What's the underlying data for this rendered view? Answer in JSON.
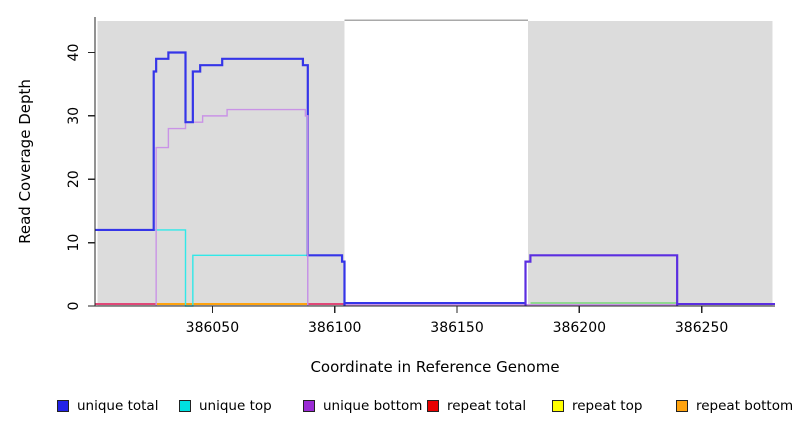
{
  "axes": {
    "x_label": "Coordinate in Reference Genome",
    "y_label": "Read Coverage Depth"
  },
  "legend": {
    "items": [
      {
        "label": "unique total",
        "color": "#2222E6"
      },
      {
        "label": "unique top",
        "color": "#00E0E0"
      },
      {
        "label": "unique bottom",
        "color": "#9A2BD4"
      },
      {
        "label": "repeat total",
        "color": "#E80000"
      },
      {
        "label": "repeat top",
        "color": "#FFFF00"
      },
      {
        "label": "repeat bottom",
        "color": "#FFA30F"
      }
    ]
  },
  "chart_data": {
    "type": "line",
    "subtype": "step-coverage",
    "title": "",
    "xlabel": "Coordinate in Reference Genome",
    "ylabel": "Read Coverage Depth",
    "xlim": [
      386002,
      386280
    ],
    "ylim": [
      0,
      45.6
    ],
    "x_ticks": [
      386050,
      386100,
      386150,
      386200,
      386250
    ],
    "y_ticks": [
      0,
      10,
      20,
      30,
      40
    ],
    "grid": false,
    "legend_position": "bottom",
    "background_color": "#FFFFFF",
    "shaded_regions": [
      {
        "x1": 386003,
        "x2": 386104,
        "color": "#DCDCDC"
      },
      {
        "x1": 386179,
        "x2": 386279,
        "color": "#DCDCDC"
      }
    ],
    "gap_top_border": {
      "x1": 386104,
      "x2": 386179,
      "color": "#A9A9A9"
    },
    "series": [
      {
        "name": "unique total",
        "color": "#2222E6",
        "steps": [
          [
            386002,
            12
          ],
          [
            386026,
            37
          ],
          [
            386027,
            39
          ],
          [
            386032,
            40
          ],
          [
            386039,
            29
          ],
          [
            386042,
            37
          ],
          [
            386045,
            38
          ],
          [
            386054,
            39
          ],
          [
            386087,
            38
          ],
          [
            386089,
            8
          ],
          [
            386103,
            7
          ],
          [
            386104,
            0
          ],
          [
            386178,
            7
          ],
          [
            386180,
            8
          ],
          [
            386240,
            0
          ],
          [
            386280,
            0
          ]
        ]
      },
      {
        "name": "unique top",
        "color": "#00E0E0",
        "steps": [
          [
            386002,
            12
          ],
          [
            386039,
            0
          ],
          [
            386042,
            8
          ],
          [
            386089,
            0
          ],
          [
            386280,
            0
          ]
        ]
      },
      {
        "name": "unique bottom",
        "color": "#9A2BD4",
        "steps": [
          [
            386002,
            0
          ],
          [
            386027,
            25
          ],
          [
            386032,
            28
          ],
          [
            386039,
            29
          ],
          [
            386046,
            30
          ],
          [
            386056,
            31
          ],
          [
            386088,
            30
          ],
          [
            386089,
            0
          ],
          [
            386178,
            7
          ],
          [
            386180,
            8
          ],
          [
            386240,
            0
          ],
          [
            386280,
            0
          ]
        ]
      },
      {
        "name": "repeat total",
        "color": "#E80000",
        "steps": [
          [
            386002,
            0
          ],
          [
            386280,
            0
          ]
        ]
      },
      {
        "name": "repeat top",
        "color": "#FFFF00",
        "steps": [
          [
            386002,
            0
          ],
          [
            386280,
            0
          ]
        ]
      },
      {
        "name": "repeat bottom",
        "color": "#FFA30F",
        "steps": [
          [
            386002,
            0
          ],
          [
            386280,
            0
          ]
        ]
      }
    ],
    "baseline_segments": [
      {
        "x1": 386002,
        "x2": 386027,
        "color": "#E04878",
        "offset": 2
      },
      {
        "x1": 386027,
        "x2": 386089,
        "color": "#FFA30F",
        "offset": 2
      },
      {
        "x1": 386089,
        "x2": 386104,
        "color": "#E04878",
        "offset": 2
      },
      {
        "x1": 386104,
        "x2": 386240,
        "color": "#C993E6",
        "offset": 1
      },
      {
        "x1": 386104,
        "x2": 386178,
        "color": "#3535E8",
        "offset": 3
      },
      {
        "x1": 386180,
        "x2": 386240,
        "color": "#90D890",
        "offset": 3
      },
      {
        "x1": 386240,
        "x2": 386280,
        "color": "#5B2EE0",
        "offset": 2
      }
    ],
    "draw_paths": [
      {
        "name": "unique-top-line",
        "color": "#30E8E8",
        "width": 1.4,
        "start_at_zero": false,
        "steps": [
          [
            386002,
            12
          ],
          [
            386039,
            0
          ],
          [
            386042,
            8
          ],
          [
            386089,
            0
          ]
        ]
      },
      {
        "name": "unique-bottom-line",
        "color": "#C993E6",
        "width": 1.4,
        "start_at_zero": true,
        "steps": [
          [
            386027,
            25
          ],
          [
            386032,
            28
          ],
          [
            386039,
            29
          ],
          [
            386046,
            30
          ],
          [
            386056,
            31
          ],
          [
            386088,
            30
          ],
          [
            386089,
            0
          ]
        ]
      },
      {
        "name": "unique-total-line",
        "color": "#3535E8",
        "width": 2.2,
        "start_at_zero": false,
        "steps": [
          [
            386002,
            12
          ],
          [
            386026,
            37
          ],
          [
            386027,
            39
          ],
          [
            386032,
            40
          ],
          [
            386039,
            29
          ],
          [
            386042,
            37
          ],
          [
            386045,
            38
          ],
          [
            386054,
            39
          ],
          [
            386087,
            38
          ],
          [
            386089,
            8
          ],
          [
            386103,
            7
          ],
          [
            386104,
            0
          ]
        ]
      },
      {
        "name": "unique-bottom-drop-overlay",
        "color": "#C993E6",
        "width": 1.4,
        "start_at_zero": false,
        "steps": [
          [
            386088,
            30
          ],
          [
            386089,
            0
          ]
        ]
      },
      {
        "name": "right-plateau-blue-purple",
        "color": "#5B2EE0",
        "width": 2.2,
        "start_at_zero": true,
        "steps": [
          [
            386178,
            7
          ],
          [
            386180,
            8
          ],
          [
            386240,
            0
          ]
        ]
      }
    ]
  }
}
